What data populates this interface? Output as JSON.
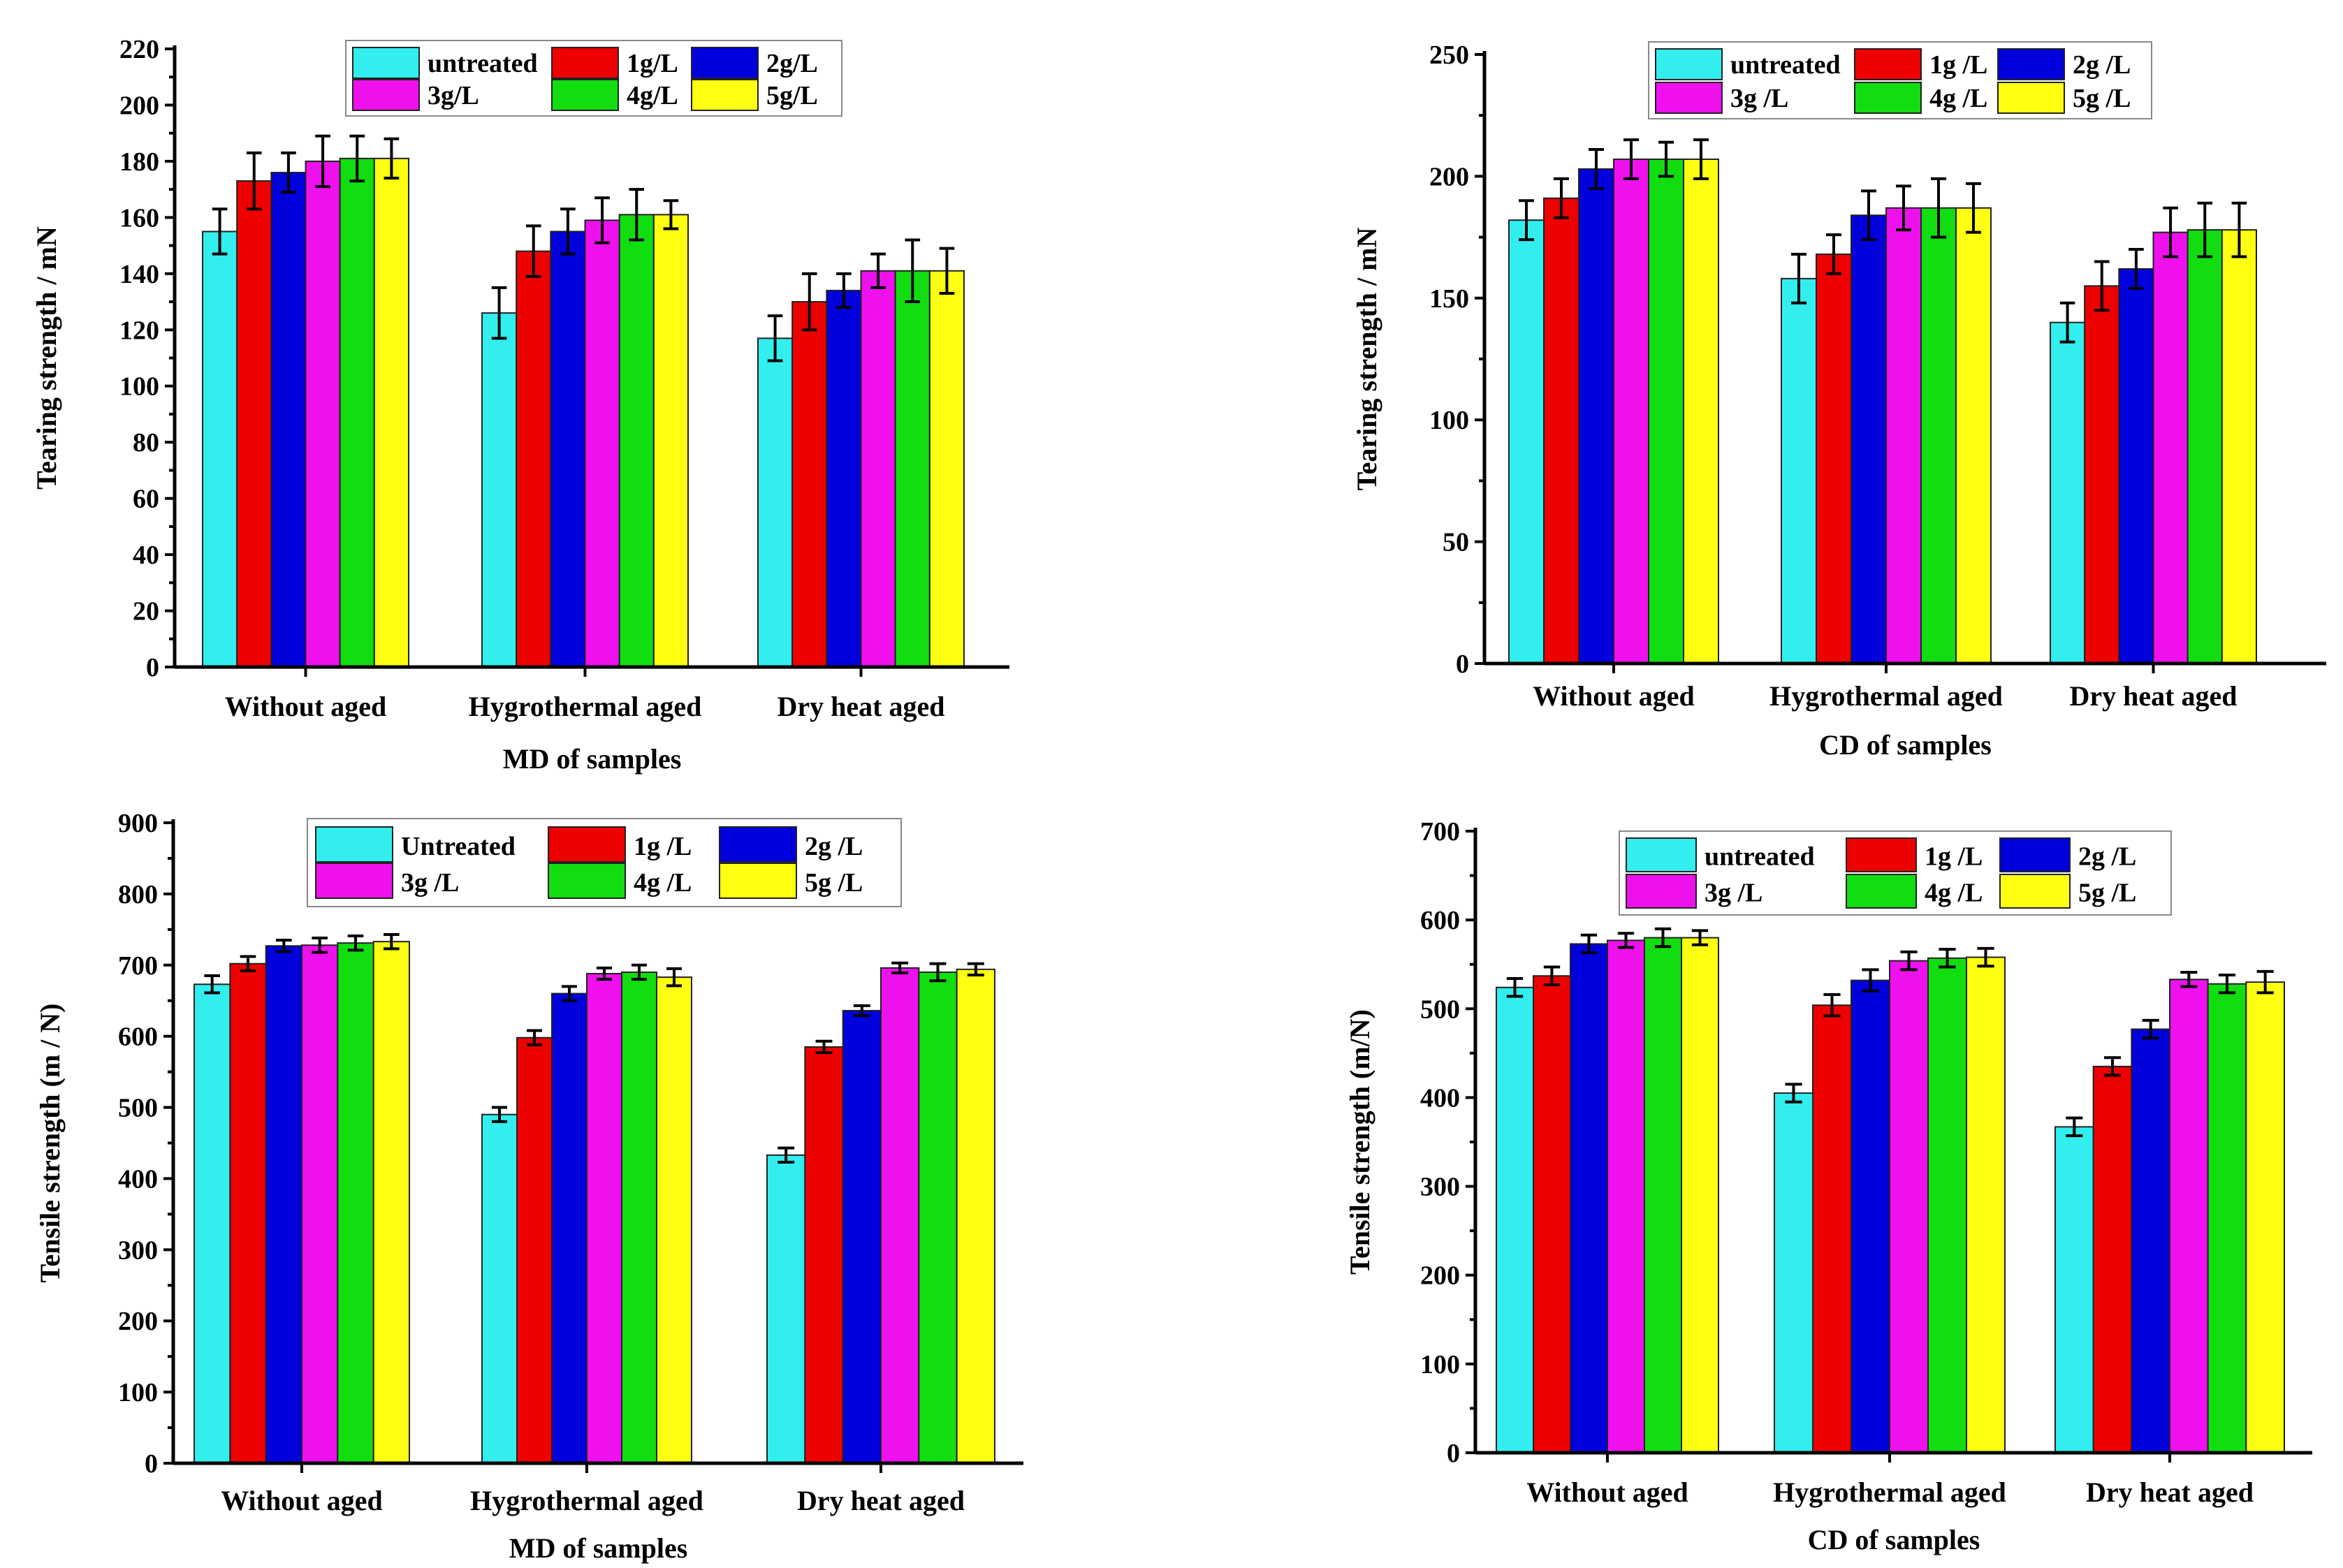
{
  "colors": {
    "untreated": "#33eeee",
    "1g": "#ee0000",
    "2g": "#0000dd",
    "3g": "#ee11ee",
    "4g": "#11dd11",
    "5g": "#ffff11"
  },
  "chart_data": [
    {
      "type": "bar",
      "title": "",
      "xlabel": "MD of samples",
      "ylabel": "Tearing strength / mN",
      "ylim": [
        0,
        220
      ],
      "yticks": [
        0,
        20,
        40,
        60,
        80,
        100,
        120,
        140,
        160,
        180,
        200,
        220
      ],
      "categories": [
        "Without aged",
        "Hygrothermal aged",
        "Dry heat aged"
      ],
      "legend_position": "top-center",
      "series": [
        {
          "name": "untreated",
          "color_key": "untreated",
          "values": [
            155,
            126,
            117
          ],
          "errors": [
            8,
            9,
            8
          ]
        },
        {
          "name": "1g/L",
          "color_key": "1g",
          "values": [
            173,
            148,
            130
          ],
          "errors": [
            10,
            9,
            10
          ]
        },
        {
          "name": "2g/L",
          "color_key": "2g",
          "values": [
            176,
            155,
            134
          ],
          "errors": [
            7,
            8,
            6
          ]
        },
        {
          "name": "3g/L",
          "color_key": "3g",
          "values": [
            180,
            159,
            141
          ],
          "errors": [
            9,
            8,
            6
          ]
        },
        {
          "name": "4g/L",
          "color_key": "4g",
          "values": [
            181,
            161,
            141
          ],
          "errors": [
            8,
            9,
            11
          ]
        },
        {
          "name": "5g/L",
          "color_key": "5g",
          "values": [
            181,
            161,
            141
          ],
          "errors": [
            7,
            5,
            8
          ]
        }
      ]
    },
    {
      "type": "bar",
      "title": "",
      "xlabel": "CD of samples",
      "ylabel": "Tearing strength / mN",
      "ylim": [
        0,
        250
      ],
      "yticks": [
        0,
        50,
        100,
        150,
        200,
        250
      ],
      "categories": [
        "Without aged",
        "Hygrothermal aged",
        "Dry heat aged"
      ],
      "legend_position": "top-center",
      "series": [
        {
          "name": "untreated",
          "color_key": "untreated",
          "values": [
            182,
            158,
            140
          ],
          "errors": [
            8,
            10,
            8
          ]
        },
        {
          "name": "1g /L",
          "color_key": "1g",
          "values": [
            191,
            168,
            155
          ],
          "errors": [
            8,
            8,
            10
          ]
        },
        {
          "name": "2g /L",
          "color_key": "2g",
          "values": [
            203,
            184,
            162
          ],
          "errors": [
            8,
            10,
            8
          ]
        },
        {
          "name": "3g /L",
          "color_key": "3g",
          "values": [
            207,
            187,
            177
          ],
          "errors": [
            8,
            9,
            10
          ]
        },
        {
          "name": "4g /L",
          "color_key": "4g",
          "values": [
            207,
            187,
            178
          ],
          "errors": [
            7,
            12,
            11
          ]
        },
        {
          "name": "5g /L",
          "color_key": "5g",
          "values": [
            207,
            187,
            178
          ],
          "errors": [
            8,
            10,
            11
          ]
        }
      ]
    },
    {
      "type": "bar",
      "title": "",
      "xlabel": "MD of samples",
      "ylabel": "Tensile strength (m / N)",
      "ylim": [
        0,
        900
      ],
      "yticks": [
        0,
        100,
        200,
        300,
        400,
        500,
        600,
        700,
        800,
        900
      ],
      "categories": [
        "Without aged",
        "Hygrothermal aged",
        "Dry heat aged"
      ],
      "legend_position": "top-center",
      "series": [
        {
          "name": "Untreated",
          "color_key": "untreated",
          "values": [
            673,
            490,
            433
          ],
          "errors": [
            12,
            10,
            10
          ]
        },
        {
          "name": "1g /L",
          "color_key": "1g",
          "values": [
            702,
            598,
            585
          ],
          "errors": [
            10,
            10,
            8
          ]
        },
        {
          "name": "2g /L",
          "color_key": "2g",
          "values": [
            727,
            660,
            636
          ],
          "errors": [
            8,
            10,
            7
          ]
        },
        {
          "name": "3g /L",
          "color_key": "3g",
          "values": [
            728,
            688,
            696
          ],
          "errors": [
            10,
            8,
            7
          ]
        },
        {
          "name": "4g /L",
          "color_key": "4g",
          "values": [
            731,
            690,
            690
          ],
          "errors": [
            10,
            10,
            12
          ]
        },
        {
          "name": "5g /L",
          "color_key": "5g",
          "values": [
            733,
            683,
            694
          ],
          "errors": [
            10,
            12,
            8
          ]
        }
      ]
    },
    {
      "type": "bar",
      "title": "",
      "xlabel": "CD of samples",
      "ylabel": "Tensile strength (m/N)",
      "ylim": [
        0,
        700
      ],
      "yticks": [
        0,
        100,
        200,
        300,
        400,
        500,
        600,
        700
      ],
      "categories": [
        "Without aged",
        "Hygrothermal aged",
        "Dry heat aged"
      ],
      "legend_position": "top-center",
      "series": [
        {
          "name": "untreated",
          "color_key": "untreated",
          "values": [
            524,
            405,
            367
          ],
          "errors": [
            10,
            10,
            10
          ]
        },
        {
          "name": "1g /L",
          "color_key": "1g",
          "values": [
            537,
            504,
            435
          ],
          "errors": [
            10,
            12,
            10
          ]
        },
        {
          "name": "2g /L",
          "color_key": "2g",
          "values": [
            573,
            532,
            477
          ],
          "errors": [
            10,
            12,
            10
          ]
        },
        {
          "name": "3g /L",
          "color_key": "3g",
          "values": [
            577,
            554,
            533
          ],
          "errors": [
            8,
            10,
            8
          ]
        },
        {
          "name": "4g /L",
          "color_key": "4g",
          "values": [
            580,
            557,
            528
          ],
          "errors": [
            10,
            10,
            10
          ]
        },
        {
          "name": "5g /L",
          "color_key": "5g",
          "values": [
            580,
            558,
            530
          ],
          "errors": [
            8,
            10,
            12
          ]
        }
      ]
    }
  ]
}
